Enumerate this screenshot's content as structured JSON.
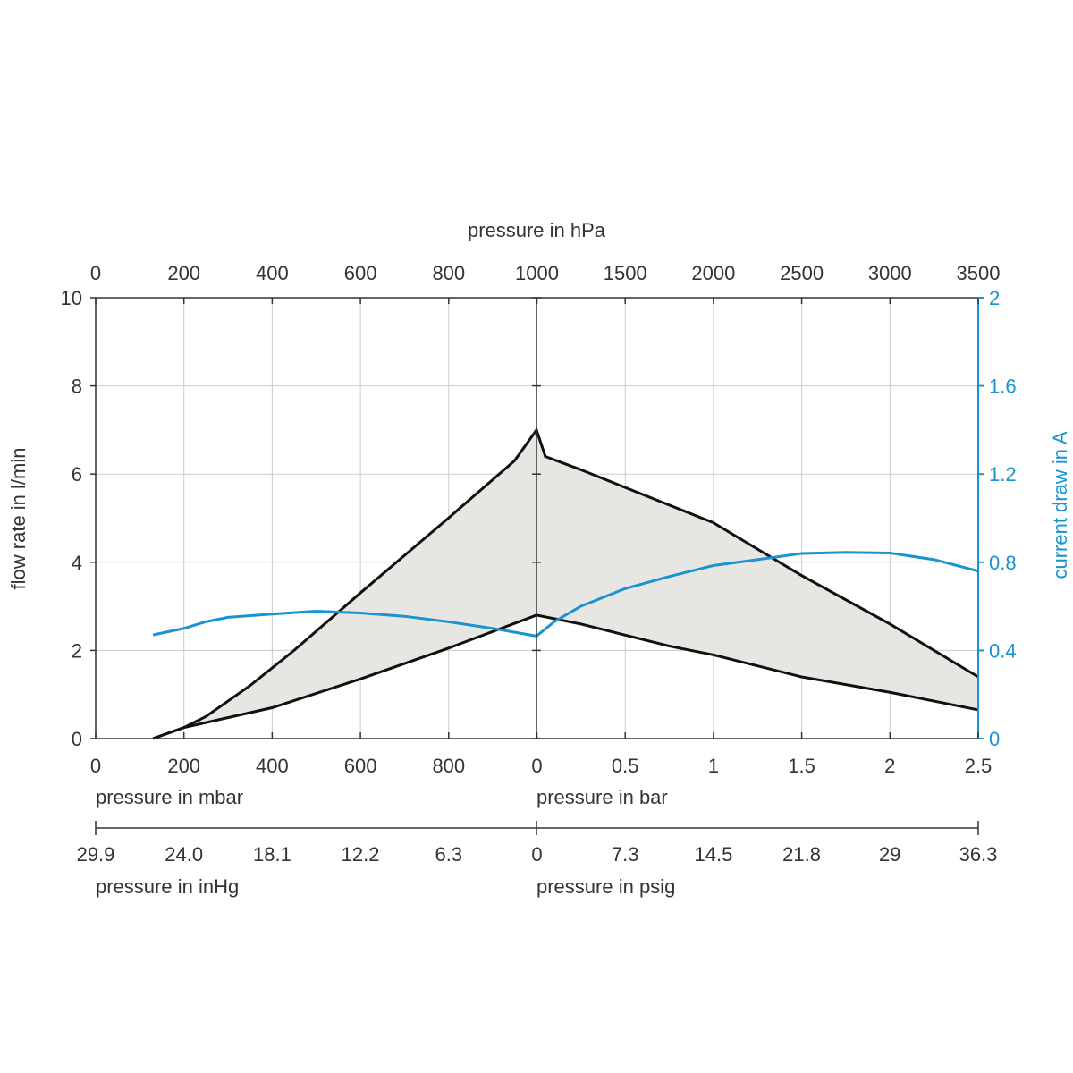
{
  "chart_data": {
    "type": "line",
    "colors": {
      "flow": "#111111",
      "current": "#1a93d1",
      "band_fill": "#e8e6e3",
      "grid": "#cccccc"
    },
    "axes": {
      "top": {
        "title": "pressure in hPa",
        "ticks_left": [
          "0",
          "200",
          "400",
          "600",
          "800",
          "1000"
        ],
        "ticks_right": [
          "1500",
          "2000",
          "2500",
          "3000",
          "3500"
        ]
      },
      "bottom": {
        "ticks_left": [
          "0",
          "200",
          "400",
          "600",
          "800"
        ],
        "ticks_right": [
          "0",
          "0.5",
          "1",
          "1.5",
          "2",
          "2.5"
        ],
        "title_left": "pressure in mbar",
        "title_right": "pressure in bar"
      },
      "bottom2": {
        "ticks": [
          "29.9",
          "24.0",
          "18.1",
          "12.2",
          "6.3",
          "0",
          "7.3",
          "14.5",
          "21.8",
          "29",
          "36.3"
        ],
        "title_left": "pressure in inHg",
        "title_right": "pressure in psig"
      },
      "y_left": {
        "title": "flow rate in l/min",
        "ticks": [
          "0",
          "2",
          "4",
          "6",
          "8",
          "10"
        ],
        "ylim": [
          0,
          10
        ]
      },
      "y_right": {
        "title": "current draw in A",
        "ticks": [
          "0",
          "0.4",
          "0.8",
          "1.2",
          "1.6",
          "2"
        ],
        "ylim": [
          0,
          2
        ]
      }
    },
    "grid": true,
    "x_note": "x in hPa absolute: 0-1000 vacuum region (left half), 1000-3500 pressure region (right half, bar gauge 0-2.5)",
    "series": [
      {
        "role": "flow_max",
        "x_hPa": [
          130,
          200,
          250,
          350,
          450,
          600,
          800,
          950,
          1000,
          1050,
          1250,
          1500,
          1750,
          2000,
          2250,
          2500,
          3000,
          3500
        ],
        "y": [
          0,
          0.25,
          0.5,
          1.2,
          2.0,
          3.3,
          5.0,
          6.3,
          7.0,
          6.4,
          6.1,
          5.7,
          5.3,
          4.9,
          4.3,
          3.7,
          2.6,
          1.4
        ]
      },
      {
        "role": "flow_min",
        "x_hPa": [
          130,
          200,
          400,
          600,
          800,
          1000,
          1250,
          1500,
          1750,
          2000,
          2500,
          3000,
          3500
        ],
        "y": [
          0,
          0.25,
          0.7,
          1.35,
          2.05,
          2.8,
          2.6,
          2.35,
          2.1,
          1.9,
          1.4,
          1.05,
          0.65
        ]
      },
      {
        "role": "current",
        "x_hPa": [
          130,
          200,
          250,
          300,
          400,
          500,
          600,
          700,
          800,
          900,
          1000,
          1100,
          1250,
          1500,
          1750,
          2000,
          2250,
          2500,
          2750,
          3000,
          3250,
          3500
        ],
        "y": [
          0.47,
          0.5,
          0.53,
          0.55,
          0.565,
          0.578,
          0.57,
          0.555,
          0.53,
          0.5,
          0.465,
          0.53,
          0.6,
          0.68,
          0.735,
          0.785,
          0.812,
          0.84,
          0.845,
          0.842,
          0.812,
          0.76
        ]
      }
    ]
  }
}
